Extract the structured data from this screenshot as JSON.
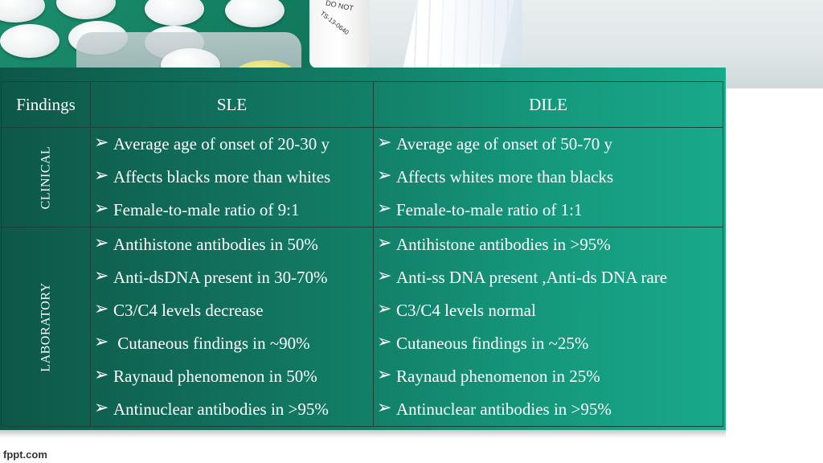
{
  "photo": {
    "bottle_text_1": "DO NOT",
    "bottle_text_2": "TS-13-0640"
  },
  "table": {
    "headers": [
      "Findings",
      "SLE",
      "DILE"
    ],
    "clinical": {
      "label": "CLINICAL",
      "sle": [
        "Average age of onset of 20-30 y",
        "Affects blacks more than whites",
        "Female-to-male ratio of 9:1"
      ],
      "dile": [
        "Average age of onset of 50-70 y",
        "Affects whites more than blacks",
        "Female-to-male ratio of 1:1"
      ]
    },
    "laboratory": {
      "label": "LABORATORY",
      "sle": [
        "Antihistone antibodies in 50%",
        "Anti-dsDNA present in 30-70%",
        "C3/C4 levels decrease",
        " Cutaneous findings in ~90%",
        "Raynaud phenomenon in 50%",
        "Antinuclear antibodies in >95%"
      ],
      "dile": [
        "Antihistone antibodies in >95%",
        "Anti-ss DNA present ,Anti-ds DNA rare",
        "C3/C4 levels normal",
        "Cutaneous findings in ~25%",
        "Raynaud phenomenon in 25%",
        "Antinuclear antibodies in >95%"
      ]
    }
  },
  "bullet_glyph": "➢",
  "footer": "fppt.com"
}
